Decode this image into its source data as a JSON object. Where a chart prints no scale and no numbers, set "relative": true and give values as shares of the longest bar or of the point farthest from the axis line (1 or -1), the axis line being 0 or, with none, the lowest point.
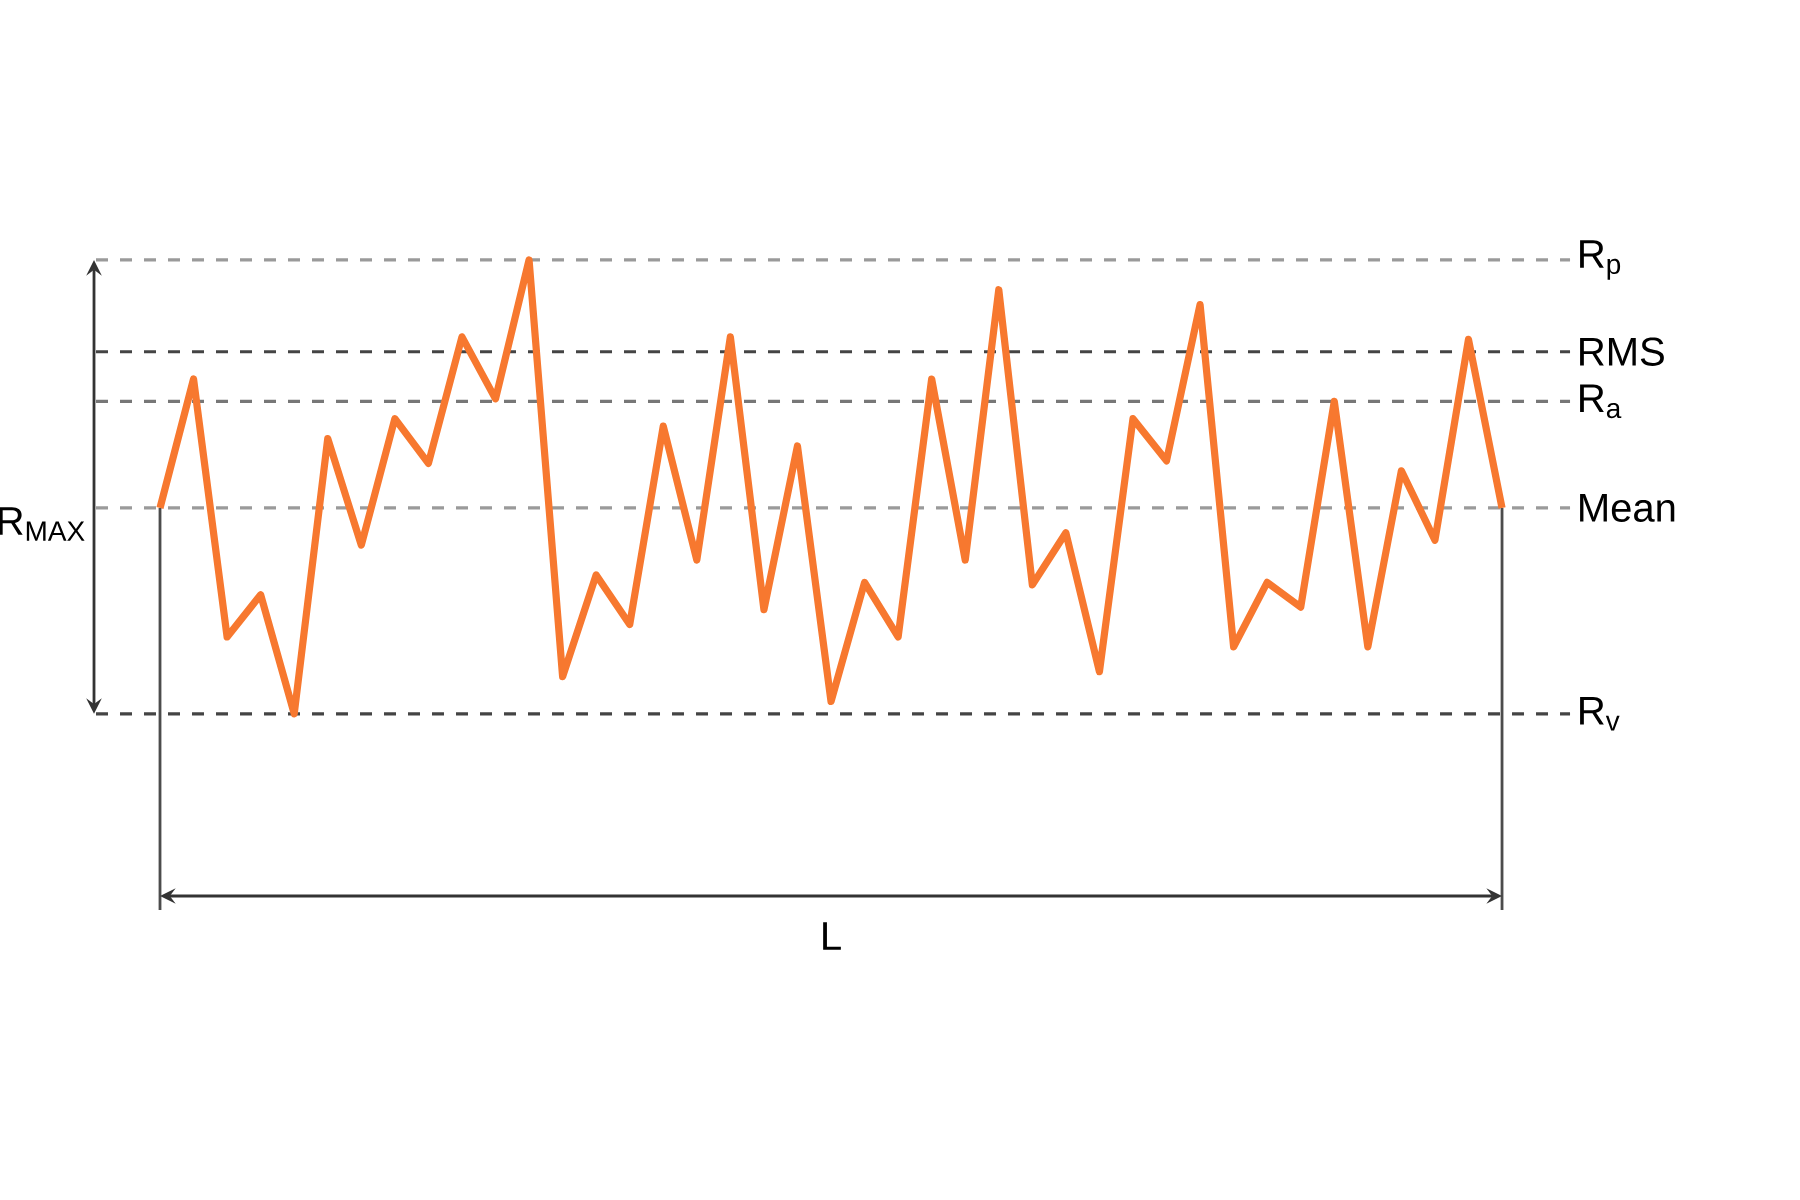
{
  "chart_data": {
    "type": "line",
    "relative": true,
    "line_style": "solid",
    "categories": [
      null,
      null,
      null,
      null,
      null,
      null,
      null,
      null,
      null,
      null,
      null,
      null,
      null,
      null,
      null,
      null,
      null,
      null,
      null,
      null,
      null,
      null,
      null,
      null,
      null,
      null,
      null,
      null,
      null,
      null,
      null,
      null,
      null,
      null,
      null,
      null,
      null,
      null,
      null,
      null,
      null
    ],
    "series": [
      {
        "color": "#f7782f",
        "values": [
          0,
          0.52,
          -0.52,
          -0.35,
          -0.83,
          0.28,
          -0.15,
          0.36,
          0.18,
          0.69,
          0.44,
          1,
          -0.68,
          -0.27,
          -0.47,
          0.33,
          -0.21,
          0.69,
          -0.41,
          0.25,
          -0.78,
          -0.3,
          -0.52,
          0.52,
          -0.21,
          0.88,
          -0.31,
          -0.1,
          -0.66,
          0.36,
          0.19,
          0.82,
          -0.56,
          -0.3,
          -0.4,
          0.43,
          -0.56,
          0.15,
          -0.13,
          0.68,
          0
        ]
      }
    ],
    "ref_lines": [
      {
        "axis": "y",
        "value": 1,
        "label": "R$_{p}$",
        "color": "#9a9a9a",
        "line_style": "dashed"
      },
      {
        "axis": "y",
        "value": 0.63,
        "label": "RMS",
        "color": "#444444",
        "line_style": "dashed"
      },
      {
        "axis": "y",
        "value": 0.43,
        "label": "R$_{a}$",
        "color": "#777777",
        "line_style": "dashed"
      },
      {
        "axis": "y",
        "value": 0,
        "label": "Mean",
        "color": "#9a9a9a",
        "line_style": "dashed"
      },
      {
        "axis": "y",
        "value": -0.83,
        "label": "R$_{v}$",
        "color": "#444444",
        "line_style": "dashed"
      }
    ],
    "annotations": [
      "R$_{MAX}$",
      "L"
    ]
  }
}
